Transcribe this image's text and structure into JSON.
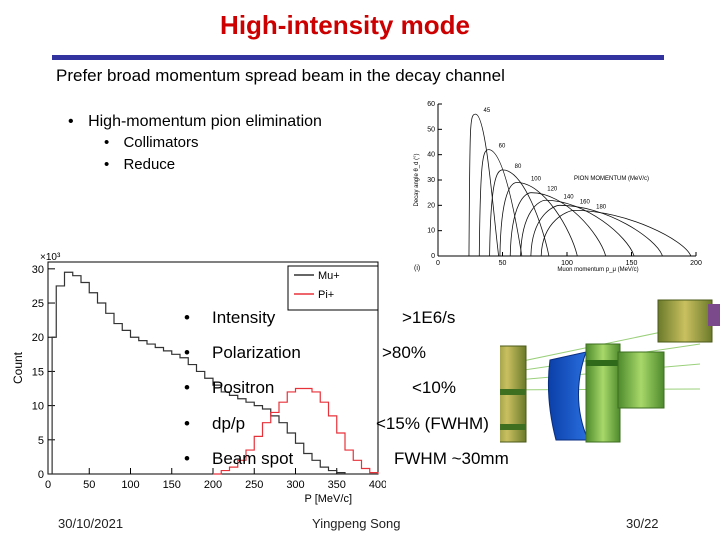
{
  "slide": {
    "title": "High-intensity mode",
    "subtitle": "Prefer broad  momentum  spread beam in the  decay  channel",
    "bullets": [
      {
        "text": "High-momentum pion elimination",
        "sub": [
          "Collimators",
          "Reduce"
        ]
      }
    ],
    "specs": [
      {
        "label": "Intensity",
        "value": ">1E6/s"
      },
      {
        "label": "Polarization",
        "value": ">80%"
      },
      {
        "label": "Positron",
        "value": "<10%"
      },
      {
        "label": "dp/p",
        "value": "<15% (FWHM)"
      },
      {
        "label": "Beam spot",
        "value": "FWHM ~30mm"
      }
    ],
    "bullet_glyph": "•",
    "footer": {
      "date": "30/10/2021",
      "author": "Yingpeng Song",
      "page": "30/22"
    },
    "colors": {
      "title": "#cc0000",
      "rule": "#3333a0"
    }
  },
  "chart_data": [
    {
      "type": "line",
      "ylabel": "Count",
      "xlabel": "P [MeV/c]",
      "y_exponent": "×10³",
      "x_ticks": [
        "0",
        "50",
        "100",
        "150",
        "200",
        "250",
        "300",
        "350",
        "400"
      ],
      "y_ticks": [
        "0",
        "5",
        "10",
        "15",
        "20",
        "25",
        "30"
      ],
      "xlim": [
        0,
        400
      ],
      "ylim": [
        0,
        31
      ],
      "legend": {
        "placement": "top-right",
        "entries": [
          "Mu+",
          "Pi+"
        ]
      },
      "series": [
        {
          "name": "Mu+",
          "color": "#333333",
          "x": [
            0,
            5,
            10,
            20,
            30,
            40,
            50,
            60,
            70,
            80,
            90,
            100,
            110,
            120,
            130,
            140,
            150,
            160,
            170,
            180,
            190,
            200,
            210,
            220,
            230,
            240,
            250,
            260,
            270,
            280,
            290,
            300,
            310,
            320,
            330,
            340,
            350,
            360
          ],
          "y": [
            0,
            20,
            27.5,
            29.5,
            29,
            28,
            26.5,
            25,
            23.5,
            22,
            21,
            20,
            19.5,
            19,
            18.5,
            18,
            17.5,
            17,
            16,
            15,
            14,
            13,
            12,
            11.5,
            11,
            10.5,
            10,
            9.5,
            8.5,
            7.5,
            6,
            4.5,
            3,
            2,
            1,
            0.5,
            0.2,
            0
          ]
        },
        {
          "name": "Pi+",
          "color": "#e8323a",
          "x": [
            200,
            210,
            220,
            230,
            240,
            250,
            260,
            270,
            280,
            290,
            300,
            310,
            320,
            330,
            340,
            350,
            360,
            370,
            380,
            390,
            400
          ],
          "y": [
            0,
            0.5,
            1,
            2,
            3.5,
            5.5,
            7.5,
            9,
            10.5,
            12,
            12.5,
            12.5,
            12,
            10.5,
            8.5,
            6,
            3.5,
            2,
            0.8,
            0.2,
            0
          ]
        }
      ]
    },
    {
      "type": "line",
      "ylabel": "Decay angle θ_d (°)",
      "xlabel": "Muon momentum p_μ (MeV/c)",
      "legend_title": "PION MOMENTUM (MeV/c)",
      "panel_label": "(i)",
      "x_ticks": [
        "0",
        "50",
        "100",
        "150",
        "200"
      ],
      "y_ticks": [
        "0",
        "10",
        "20",
        "30",
        "40",
        "50",
        "60"
      ],
      "xlim": [
        0,
        200
      ],
      "ylim": [
        0,
        60
      ],
      "series": [
        {
          "name": "45",
          "pmin": 24,
          "pmax": 47,
          "peak": 56
        },
        {
          "name": "60",
          "pmin": 32,
          "pmax": 65,
          "peak": 42
        },
        {
          "name": "80",
          "pmin": 40,
          "pmax": 86,
          "peak": 34
        },
        {
          "name": "100",
          "pmin": 48,
          "pmax": 108,
          "peak": 29
        },
        {
          "name": "120",
          "pmin": 56,
          "pmax": 130,
          "peak": 25
        },
        {
          "name": "140",
          "pmin": 64,
          "pmax": 152,
          "peak": 22
        },
        {
          "name": "160",
          "pmin": 72,
          "pmax": 174,
          "peak": 20
        },
        {
          "name": "180",
          "pmin": 80,
          "pmax": 196,
          "peak": 18
        }
      ]
    }
  ]
}
